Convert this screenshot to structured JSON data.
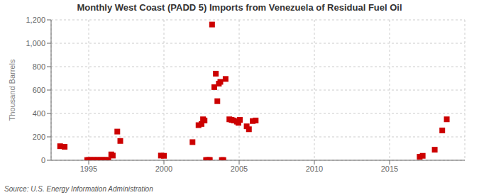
{
  "chart_data": {
    "type": "scatter",
    "title": "Monthly West Coast (PADD 5) Imports from Venezuela of Residual Fuel Oil",
    "ylabel": "Thousand Barrels",
    "annotations": [
      "Source: U.S. Energy Information Administration"
    ],
    "color": "#cc0000",
    "marker": "square",
    "grid": true,
    "xlim": [
      1992.5,
      2020
    ],
    "ylim": [
      0,
      1200
    ],
    "xticks": [
      1995,
      2000,
      2005,
      2010,
      2015
    ],
    "yticks": [
      0,
      200,
      400,
      600,
      800,
      {
        "value": 1000,
        "label": "1,000"
      },
      {
        "value": 1200,
        "label": "1,200"
      }
    ],
    "x": [
      1993.1,
      1993.4,
      1994.9,
      1995.0,
      1995.1,
      1995.2,
      1995.3,
      1995.4,
      1995.5,
      1995.6,
      1995.7,
      1995.8,
      1995.9,
      1996.0,
      1996.1,
      1996.2,
      1996.3,
      1996.5,
      1996.6,
      1996.9,
      1997.1,
      1999.8,
      2000.0,
      2001.9,
      2002.3,
      2002.5,
      2002.6,
      2002.7,
      2002.8,
      2002.9,
      2003.0,
      2003.05,
      2003.2,
      2003.35,
      2003.45,
      2003.55,
      2003.65,
      2003.75,
      2003.85,
      2003.95,
      2004.1,
      2004.35,
      2004.5,
      2004.65,
      2004.85,
      2004.95,
      2005.05,
      2005.5,
      2005.65,
      2005.9,
      2006.1,
      2017.0,
      2017.2,
      2018.0,
      2018.5,
      2018.8
    ],
    "values": [
      120,
      115,
      2,
      2,
      2,
      2,
      2,
      2,
      2,
      2,
      2,
      2,
      2,
      2,
      2,
      2,
      2,
      50,
      40,
      245,
      165,
      40,
      38,
      155,
      300,
      310,
      350,
      340,
      2,
      2,
      2,
      2,
      1160,
      625,
      740,
      505,
      655,
      670,
      2,
      2,
      695,
      350,
      345,
      340,
      330,
      320,
      345,
      290,
      265,
      335,
      340,
      30,
      38,
      90,
      255,
      350
    ]
  }
}
